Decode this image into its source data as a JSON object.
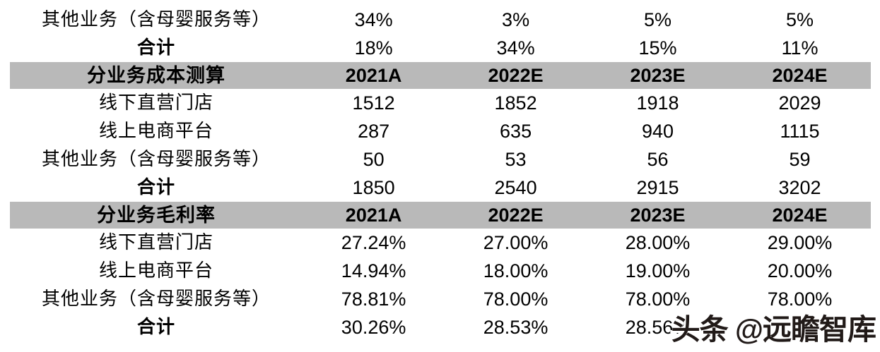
{
  "colors": {
    "background": "#ffffff",
    "header_row_bg": "#b9b9b9",
    "text": "#000000",
    "watermark_text": "#211a18"
  },
  "table": {
    "columns": [
      "2021A",
      "2022E",
      "2023E",
      "2024E"
    ],
    "sections": [
      {
        "title": "",
        "rows": [
          {
            "label": "其他业务（含母婴服务等）",
            "values": [
              "34%",
              "3%",
              "5%",
              "5%"
            ]
          },
          {
            "label": "合计",
            "values": [
              "18%",
              "34%",
              "15%",
              "11%"
            ]
          }
        ]
      },
      {
        "title": "分业务成本测算",
        "rows": [
          {
            "label": "线下直营门店",
            "values": [
              "1512",
              "1852",
              "1918",
              "2029"
            ]
          },
          {
            "label": "线上电商平台",
            "values": [
              "287",
              "635",
              "940",
              "1115"
            ]
          },
          {
            "label": "其他业务（含母婴服务等）",
            "values": [
              "50",
              "53",
              "56",
              "59"
            ]
          },
          {
            "label": "合计",
            "values": [
              "1850",
              "2540",
              "2915",
              "3202"
            ]
          }
        ]
      },
      {
        "title": "分业务毛利率",
        "rows": [
          {
            "label": "线下直营门店",
            "values": [
              "27.24%",
              "27.00%",
              "28.00%",
              "29.00%"
            ]
          },
          {
            "label": "线上电商平台",
            "values": [
              "14.94%",
              "18.00%",
              "19.00%",
              "20.00%"
            ]
          },
          {
            "label": "其他业务（含母婴服务等）",
            "values": [
              "78.81%",
              "78.00%",
              "78.00%",
              "78.00%"
            ]
          },
          {
            "label": "合计",
            "values": [
              "30.26%",
              "28.53%",
              "28.56%",
              ""
            ]
          }
        ]
      }
    ]
  },
  "watermark": {
    "text": "头条 @远瞻智库"
  }
}
